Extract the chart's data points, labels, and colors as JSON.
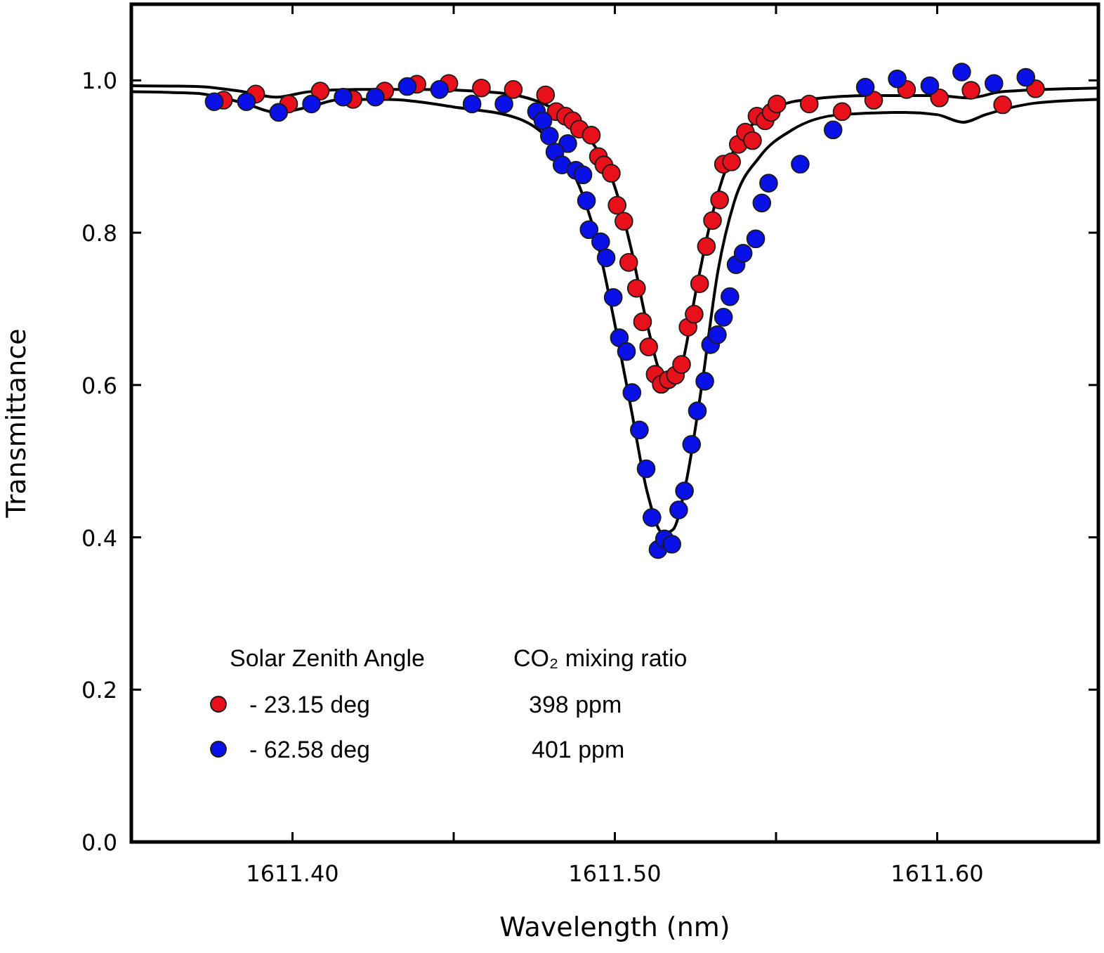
{
  "chart_data": {
    "type": "scatter",
    "xlabel": "Wavelength (nm)",
    "ylabel": "Transmittance",
    "xlim": [
      1611.35,
      1611.65
    ],
    "ylim": [
      0,
      1.1
    ],
    "xticks": [
      {
        "value": 1611.4,
        "label": "1611.40"
      },
      {
        "value": 1611.45,
        "label": null
      },
      {
        "value": 1611.5,
        "label": "1611.50"
      },
      {
        "value": 1611.55,
        "label": null
      },
      {
        "value": 1611.6,
        "label": "1611.60"
      }
    ],
    "yticks": [
      {
        "value": 0,
        "label": "0.0"
      },
      {
        "value": 0.2,
        "label": "0.2"
      },
      {
        "value": 0.4,
        "label": "0.4"
      },
      {
        "value": 0.6,
        "label": "0.6"
      },
      {
        "value": 0.8,
        "label": "0.8"
      },
      {
        "value": 1.0,
        "label": "1.0"
      }
    ],
    "grid": false,
    "legend": "bottom left",
    "legend_title": "Solar Zenith Angle",
    "marker": "circle",
    "annotations": [
      "CO₂ mixing ratio",
      "398 ppm",
      "401 ppm"
    ],
    "series": [
      {
        "type": "line",
        "color": "#000000",
        "marker": "none",
        "x": [
          1611.35,
          1611.37,
          1611.385,
          1611.395,
          1611.405,
          1611.42,
          1611.44,
          1611.46,
          1611.47,
          1611.48,
          1611.49,
          1611.495,
          1611.5,
          1611.505,
          1611.51,
          1611.515,
          1611.518,
          1611.521,
          1611.525,
          1611.53,
          1611.535,
          1611.54,
          1611.545,
          1611.55,
          1611.56,
          1611.58,
          1611.6,
          1611.61,
          1611.62,
          1611.65
        ],
        "values": [
          0.993,
          0.992,
          0.985,
          0.978,
          0.985,
          0.988,
          0.988,
          0.985,
          0.98,
          0.965,
          0.935,
          0.905,
          0.86,
          0.78,
          0.68,
          0.61,
          0.605,
          0.63,
          0.72,
          0.82,
          0.89,
          0.93,
          0.95,
          0.965,
          0.975,
          0.98,
          0.98,
          0.977,
          0.985,
          0.99
        ]
      },
      {
        "type": "line",
        "color": "#000000",
        "marker": "none",
        "x": [
          1611.35,
          1611.37,
          1611.385,
          1611.395,
          1611.405,
          1611.415,
          1611.43,
          1611.45,
          1611.47,
          1611.48,
          1611.49,
          1611.495,
          1611.5,
          1611.505,
          1611.51,
          1611.515,
          1611.518,
          1611.522,
          1611.527,
          1611.532,
          1611.537,
          1611.545,
          1611.555,
          1611.57,
          1611.59,
          1611.6,
          1611.608,
          1611.615,
          1611.63,
          1611.65
        ],
        "values": [
          0.985,
          0.983,
          0.97,
          0.958,
          0.965,
          0.975,
          0.975,
          0.965,
          0.95,
          0.92,
          0.85,
          0.78,
          0.68,
          0.57,
          0.46,
          0.405,
          0.41,
          0.47,
          0.6,
          0.75,
          0.84,
          0.9,
          0.935,
          0.955,
          0.958,
          0.955,
          0.945,
          0.955,
          0.97,
          0.975
        ]
      },
      {
        "name": "-  23.15 deg",
        "color": "#e8101a",
        "x": [
          1611.3786,
          1611.3886,
          1611.3988,
          1611.4086,
          1611.4188,
          1611.4286,
          1611.4386,
          1611.4485,
          1611.4586,
          1611.4685,
          1611.4785,
          1611.4818,
          1611.4847,
          1611.4869,
          1611.489,
          1611.4927,
          1611.4949,
          1611.4966,
          1611.4989,
          1611.5007,
          1611.5028,
          1611.5043,
          1611.5067,
          1611.5086,
          1611.5105,
          1611.5125,
          1611.5144,
          1611.5166,
          1611.5188,
          1611.5207,
          1611.5227,
          1611.5246,
          1611.5263,
          1611.5284,
          1611.5303,
          1611.5325,
          1611.5337,
          1611.5362,
          1611.5383,
          1611.5405,
          1611.5427,
          1611.5441,
          1611.5466,
          1611.5485,
          1611.5503,
          1611.5603,
          1611.5705,
          1611.5803,
          1611.5905,
          1611.6007,
          1611.6105,
          1611.6203,
          1611.6305
        ],
        "values": [
          0.974,
          0.982,
          0.969,
          0.986,
          0.975,
          0.986,
          0.995,
          0.996,
          0.99,
          0.988,
          0.981,
          0.959,
          0.953,
          0.947,
          0.936,
          0.928,
          0.9,
          0.889,
          0.878,
          0.836,
          0.815,
          0.761,
          0.727,
          0.683,
          0.65,
          0.614,
          0.601,
          0.607,
          0.613,
          0.627,
          0.676,
          0.693,
          0.733,
          0.782,
          0.816,
          0.843,
          0.89,
          0.893,
          0.916,
          0.932,
          0.921,
          0.953,
          0.947,
          0.958,
          0.969,
          0.969,
          0.959,
          0.974,
          0.988,
          0.977,
          0.987,
          0.968,
          0.989
        ]
      },
      {
        "name": "-  62.58 deg",
        "color": "#0a10e8",
        "x": [
          1611.3757,
          1611.3857,
          1611.3957,
          1611.4059,
          1611.4157,
          1611.4257,
          1611.4356,
          1611.4456,
          1611.4557,
          1611.4656,
          1611.4757,
          1611.4777,
          1611.4797,
          1611.4854,
          1611.4814,
          1611.4836,
          1611.4879,
          1611.4901,
          1611.4912,
          1611.492,
          1611.4956,
          1611.4973,
          1611.4995,
          1611.5014,
          1611.5036,
          1611.5053,
          1611.5076,
          1611.5097,
          1611.5115,
          1611.5134,
          1611.5154,
          1611.5177,
          1611.5198,
          1611.5216,
          1611.5238,
          1611.5256,
          1611.5279,
          1611.5297,
          1611.5318,
          1611.5337,
          1611.5357,
          1611.5376,
          1611.5398,
          1611.5437,
          1611.5456,
          1611.5477,
          1611.5575,
          1611.5677,
          1611.5777,
          1611.5876,
          1611.5977,
          1611.6076,
          1611.6176,
          1611.6275
        ],
        "values": [
          0.972,
          0.972,
          0.958,
          0.969,
          0.978,
          0.978,
          0.992,
          0.988,
          0.969,
          0.969,
          0.959,
          0.947,
          0.927,
          0.917,
          0.906,
          0.889,
          0.882,
          0.876,
          0.842,
          0.804,
          0.788,
          0.767,
          0.715,
          0.662,
          0.644,
          0.59,
          0.541,
          0.49,
          0.426,
          0.384,
          0.398,
          0.391,
          0.436,
          0.461,
          0.522,
          0.566,
          0.605,
          0.653,
          0.666,
          0.689,
          0.716,
          0.758,
          0.773,
          0.792,
          0.839,
          0.865,
          0.89,
          0.935,
          0.991,
          1.002,
          0.993,
          1.011,
          0.996,
          1.004
        ]
      }
    ]
  }
}
